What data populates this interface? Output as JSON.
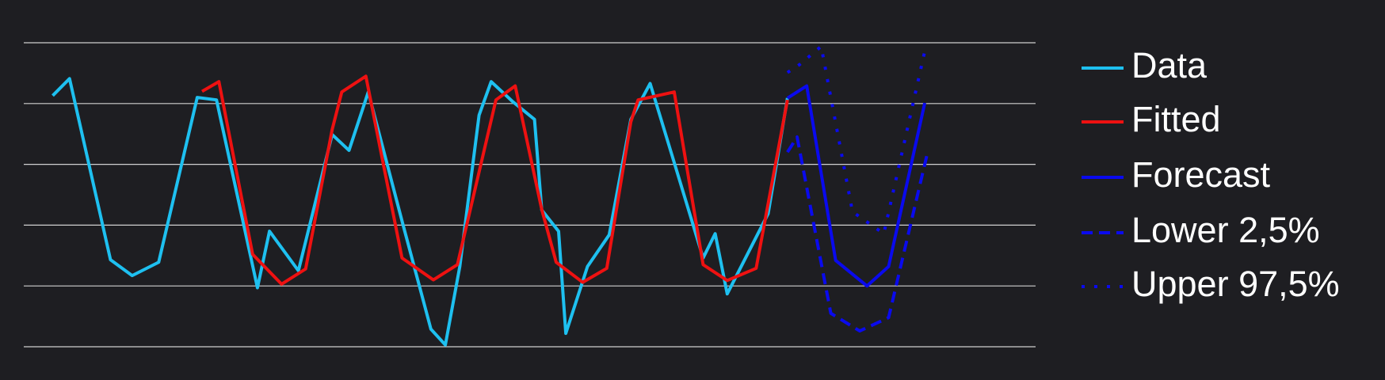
{
  "chart_data": {
    "type": "line",
    "xlim": [
      0,
      42
    ],
    "ylim": [
      0,
      5
    ],
    "yticks": [
      0,
      1,
      2,
      3,
      4,
      5
    ],
    "grid": true,
    "legend": "right",
    "series": [
      {
        "name": "Data",
        "color": "#1ec0f0",
        "dash": "solid",
        "x": [
          1.2,
          1.9,
          3.6,
          4.5,
          5.6,
          7.2,
          8.0,
          9.7,
          10.2,
          11.4,
          12.8,
          13.5,
          14.3,
          15.7,
          16.9,
          17.5,
          18.1,
          18.9,
          19.4,
          20.3,
          21.2,
          21.5,
          22.2,
          22.5,
          23.4,
          24.3,
          25.2,
          26.0,
          26.9,
          28.2,
          28.7,
          29.2,
          30.9,
          31.7
        ],
        "values": [
          4.13,
          4.41,
          1.43,
          1.17,
          1.39,
          4.1,
          4.06,
          0.97,
          1.9,
          1.25,
          3.49,
          3.23,
          4.19,
          2.07,
          0.29,
          0.03,
          1.32,
          3.81,
          4.36,
          4.03,
          3.74,
          2.25,
          1.9,
          0.22,
          1.32,
          1.84,
          3.74,
          4.33,
          3.16,
          1.46,
          1.86,
          0.87,
          2.19,
          4.09
        ]
      },
      {
        "name": "Fitted",
        "color": "#ee1111",
        "dash": "solid",
        "x": [
          7.4,
          8.1,
          9.5,
          10.7,
          11.7,
          12.8,
          13.2,
          14.2,
          15.7,
          17.0,
          18.0,
          19.6,
          20.4,
          21.5,
          22.1,
          23.2,
          24.2,
          25.2,
          25.5,
          27.0,
          28.2,
          29.2,
          30.4,
          31.7
        ],
        "values": [
          4.2,
          4.36,
          1.52,
          1.03,
          1.28,
          3.57,
          4.19,
          4.45,
          1.46,
          1.1,
          1.35,
          4.06,
          4.29,
          2.26,
          1.39,
          1.06,
          1.29,
          3.7,
          4.06,
          4.19,
          1.35,
          1.09,
          1.29,
          4.06
        ]
      },
      {
        "name": "Forecast",
        "color": "#0a0aee",
        "dash": "solid",
        "x": [
          31.7,
          32.5,
          33.7,
          35.0,
          35.9,
          37.4
        ],
        "values": [
          4.09,
          4.29,
          1.42,
          1.0,
          1.32,
          4.01
        ]
      },
      {
        "name": "Lower 2,5%",
        "color": "#0a0aee",
        "dash": "dashed",
        "x": [
          31.7,
          32.1,
          33.5,
          34.7,
          35.9,
          37.5
        ],
        "values": [
          3.2,
          3.45,
          0.55,
          0.26,
          0.48,
          3.17
        ]
      },
      {
        "name": "Upper 97,5%",
        "color": "#0a0aee",
        "dash": "dotted",
        "x": [
          31.7,
          32.2,
          33.1,
          34.4,
          35.7,
          37.4
        ],
        "values": [
          4.51,
          4.64,
          4.94,
          2.22,
          1.86,
          4.86
        ]
      }
    ]
  }
}
